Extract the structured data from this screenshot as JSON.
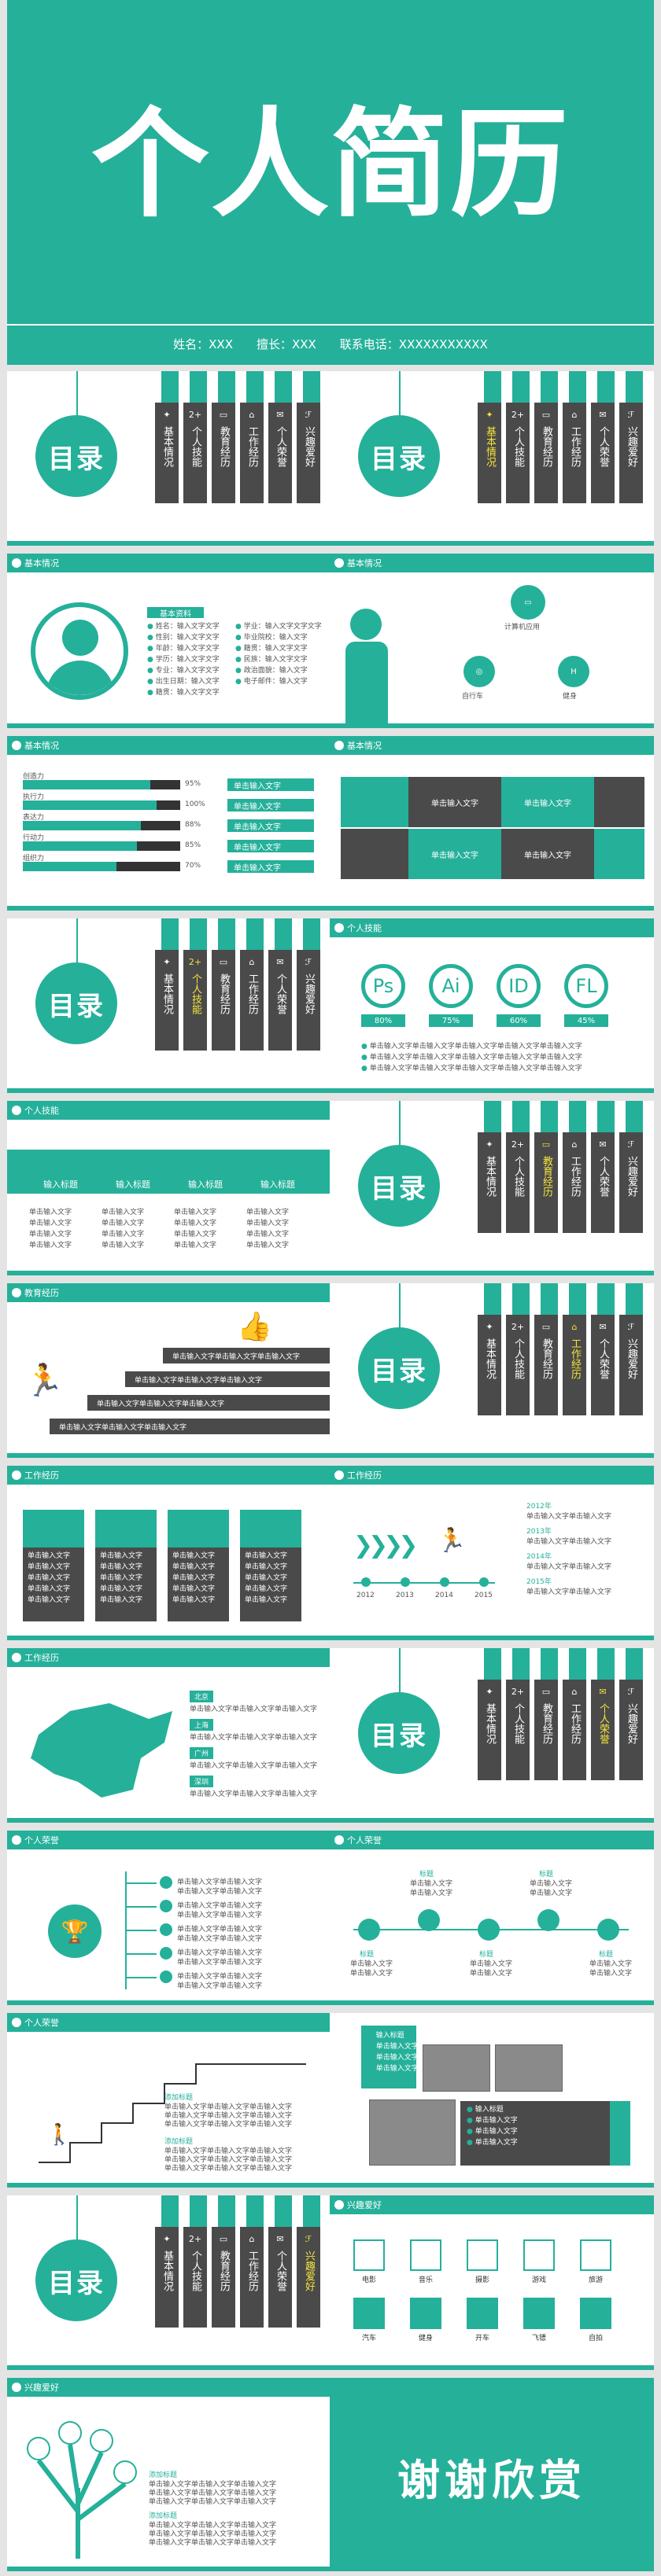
{
  "cover": {
    "title": "个人简历",
    "name_label": "姓名：XXX",
    "apply_label": "擅长：XXX",
    "contact_label": "联系电话：XXXXXXXXXXX"
  },
  "toc": {
    "title": "目录",
    "items": [
      "基本情况",
      "个人技能",
      "教育经历",
      "工作经历",
      "个人荣誉",
      "兴趣爱好"
    ],
    "icons": [
      "✦",
      "2+",
      "▭",
      "⌂",
      "✉",
      "ℱ"
    ]
  },
  "headers": {
    "basic": "基本情况",
    "skills": "个人技能",
    "education": "教育经历",
    "work": "工作经历",
    "honor": "个人荣誉",
    "hobby": "兴趣爱好"
  },
  "basic1": {
    "title": "基本资料",
    "rows": [
      "姓名：输入文字文字",
      "性别：输入文字文字",
      "年龄：输入文字文字",
      "学历：输入文字文字",
      "专业：输入文字文字",
      "出生日期：输入文字",
      "籍贯：输入文字文字"
    ],
    "rows2": [
      "学业：输入文字文字文字",
      "毕业院校：输入文字",
      "籍贯：输入文字文字",
      "民族：输入文字文字",
      "政治面貌：输入文字",
      "电子邮件：输入文字"
    ]
  },
  "basic2": {
    "labels": [
      "计算机应用",
      "自行车",
      "健身"
    ]
  },
  "bars": {
    "rows": [
      {
        "label": "创造力",
        "pct": "95%",
        "value": 0.95
      },
      {
        "label": "执行力",
        "pct": "100%",
        "value": 1.0
      },
      {
        "label": "表达力",
        "pct": "88%",
        "value": 0.88
      },
      {
        "label": "行动力",
        "pct": "85%",
        "value": 0.85
      },
      {
        "label": "组织力",
        "pct": "70%",
        "value": 0.7
      }
    ],
    "pill": "单击输入文字"
  },
  "grid": {
    "cell": "单击输入文字"
  },
  "rings": {
    "items": [
      {
        "label": "Ps",
        "pct": "80%"
      },
      {
        "label": "Ai",
        "pct": "75%"
      },
      {
        "label": "ID",
        "pct": "60%"
      },
      {
        "label": "FL",
        "pct": "45%"
      }
    ],
    "lines": [
      "单击输入文字单击输入文字单击输入文字单击输入文字单击输入文字",
      "单击输入文字单击输入文字单击输入文字单击输入文字单击输入文字",
      "单击输入文字单击输入文字单击输入文字单击输入文字单击输入文字"
    ]
  },
  "skills4": {
    "title": "输入标题",
    "text": "单击输入文字"
  },
  "edu": {
    "row": "单击输入文字单击输入文字单击输入文字"
  },
  "work1": {
    "text": "单击输入文字"
  },
  "timeline": {
    "years": [
      "2012",
      "2013",
      "2014",
      "2015"
    ],
    "entries": [
      {
        "year": "2012年",
        "text": "单击输入文字单击输入文字"
      },
      {
        "year": "2013年",
        "text": "单击输入文字单击输入文字"
      },
      {
        "year": "2014年",
        "text": "单击输入文字单击输入文字"
      },
      {
        "year": "2015年",
        "text": "单击输入文字单击输入文字"
      }
    ]
  },
  "map": {
    "tags": [
      "北京",
      "上海",
      "广州",
      "深圳"
    ],
    "text": "单击输入文字单击输入文字单击输入文字"
  },
  "honor1": {
    "text": "单击输入文字单击输入文字"
  },
  "honor2": {
    "title": "标题",
    "text": "单击输入文字"
  },
  "stairs": {
    "title": "添加标题",
    "text": "单击输入文字单击输入文字单击输入文字"
  },
  "photos": {
    "title": "输入标题",
    "text": "单击输入文字",
    "title2": "输入标题"
  },
  "hobby": {
    "items": [
      "电影",
      "音乐",
      "摄影",
      "游戏",
      "旅游",
      "汽车",
      "健身",
      "开车",
      "飞镖",
      "自拍"
    ]
  },
  "tree": {
    "title": "添加标题",
    "text": "单击输入文字单击输入文字单击输入文字"
  },
  "thanks": "谢谢欣赏"
}
